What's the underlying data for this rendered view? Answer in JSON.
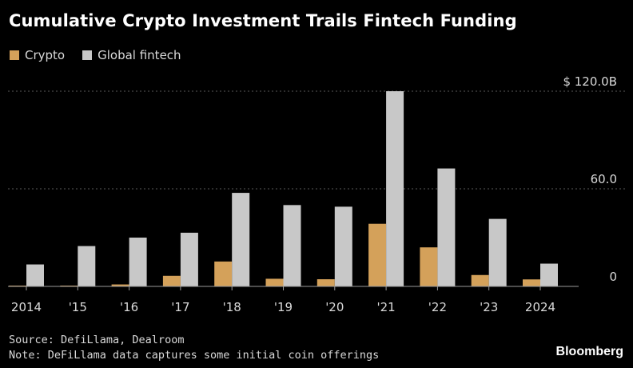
{
  "chart_data": {
    "type": "bar",
    "title": "Cumulative Crypto Investment Trails Fintech Funding",
    "categories": [
      "2014",
      "'15",
      "'16",
      "'17",
      "'18",
      "'19",
      "'20",
      "'21",
      "'22",
      "'23",
      "2024"
    ],
    "series": [
      {
        "name": "Crypto",
        "color": "#d4a15a",
        "values": [
          0.4,
          0.4,
          1.2,
          6.5,
          15.3,
          4.7,
          4.4,
          38.5,
          24.0,
          7.0,
          4.3
        ]
      },
      {
        "name": "Global fintech",
        "color": "#c8c8c8",
        "values": [
          13.5,
          24.8,
          30.0,
          33.0,
          57.5,
          50.0,
          49.0,
          120.0,
          72.5,
          41.5,
          14.0
        ]
      }
    ],
    "ylim": [
      0,
      120
    ],
    "yticks": [
      0,
      60,
      120
    ],
    "ytick_labels": [
      "0",
      "60.0",
      "$ 120.0B"
    ],
    "grid": true,
    "xlabel": "",
    "ylabel": ""
  },
  "legend": {
    "crypto_label": "Crypto",
    "fintech_label": "Global fintech",
    "crypto_color": "#d4a15a",
    "fintech_color": "#c8c8c8"
  },
  "footer": {
    "source": "Source: DefiLlama, Dealroom",
    "note": "Note: DeFiLlama data captures some initial coin offerings"
  },
  "brand": "Bloomberg"
}
